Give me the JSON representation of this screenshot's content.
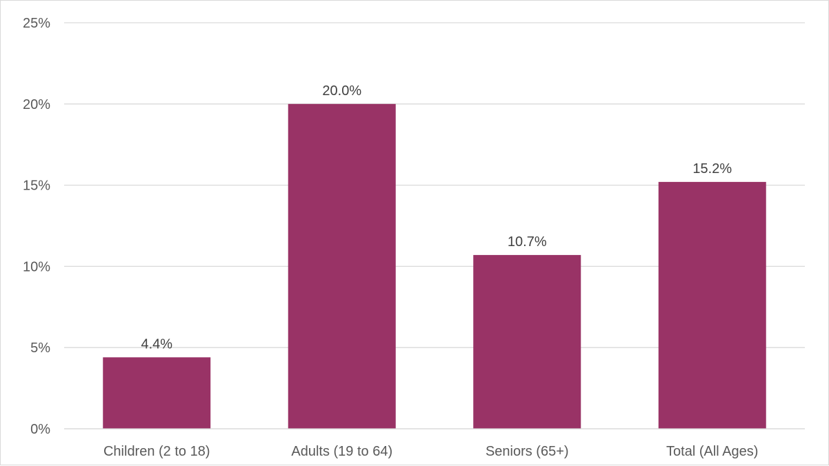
{
  "chart_data": {
    "type": "bar",
    "categories": [
      "Children (2 to 18)",
      "Adults (19 to 64)",
      "Seniors (65+)",
      "Total (All Ages)"
    ],
    "values": [
      4.4,
      20.0,
      10.7,
      15.2
    ],
    "data_labels": [
      "4.4%",
      "20.0%",
      "10.7%",
      "15.2%"
    ],
    "title": "",
    "xlabel": "",
    "ylabel": "",
    "ylim": [
      0,
      25
    ],
    "yticks": [
      0,
      5,
      10,
      15,
      20,
      25
    ],
    "ytick_labels": [
      "0%",
      "5%",
      "10%",
      "15%",
      "20%",
      "25%"
    ],
    "grid": true,
    "legend": "none",
    "bar_color": "#993366",
    "grid_color": "#d9d9d9",
    "text_color": "#595959"
  }
}
